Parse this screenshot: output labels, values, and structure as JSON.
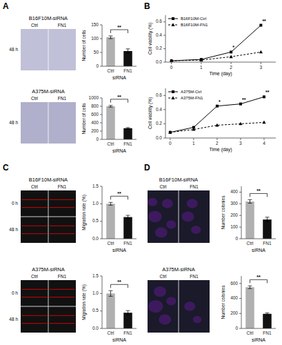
{
  "chart_data": [
    {
      "type": "image",
      "label": "A",
      "title": "B16F10M-siRNA",
      "columns": [
        "Ctrl",
        "FN1"
      ],
      "rows": [
        "48 h"
      ],
      "color": "#c0c0d8"
    },
    {
      "type": "bar",
      "categories": [
        "Ctrl",
        "FN1"
      ],
      "values": [
        105,
        55
      ],
      "yerr": [
        5,
        8
      ],
      "colors": [
        "#b0b0b0",
        "#111111"
      ],
      "xlabel": "siRNA",
      "ylabel": "Number of cells",
      "ylim": [
        0,
        150
      ],
      "yticks": [
        0,
        50,
        100,
        150
      ],
      "grid": false,
      "annotations": [
        "**"
      ]
    },
    {
      "type": "image",
      "title": "A375M-siRNA",
      "columns": [
        "Ctrl",
        "FN1"
      ],
      "rows": [
        "48 h"
      ],
      "color": "#b0b0cc"
    },
    {
      "type": "bar",
      "categories": [
        "Ctrl",
        "FN1"
      ],
      "values": [
        800,
        270
      ],
      "yerr": [
        20,
        15
      ],
      "colors": [
        "#b0b0b0",
        "#111111"
      ],
      "xlabel": "siRNA",
      "ylabel": "Number of cells",
      "ylim": [
        0,
        1000
      ],
      "yticks": [
        0,
        200,
        400,
        600,
        800,
        1000
      ],
      "grid": false,
      "annotations": [
        "**"
      ]
    },
    {
      "type": "line",
      "label": "B",
      "x": [
        0,
        1,
        2,
        3
      ],
      "series": [
        {
          "name": "B16F10M-Ctrl",
          "color": "#000000",
          "marker": "square",
          "line_style": "solid",
          "values": [
            0.02,
            0.04,
            0.15,
            0.55
          ]
        },
        {
          "name": "B16F10M-FN1",
          "color": "#000000",
          "marker": "triangle",
          "line_style": "dashed",
          "values": [
            0.02,
            0.03,
            0.08,
            0.15
          ]
        }
      ],
      "xlabel": "Time (day)",
      "ylabel": "Cell viability (%)",
      "xlim": [
        -0.2,
        3.5
      ],
      "xticks": [
        0,
        1,
        2,
        3
      ],
      "ylim": [
        0,
        0.7
      ],
      "yticks": [
        {
          "value": 0,
          "label": "0.0"
        },
        0.2,
        0.4,
        0.6
      ],
      "grid": false,
      "legend": "upper left",
      "annotations": [
        {
          "text": "**",
          "x": 3
        },
        {
          "text": "*",
          "x": 2
        }
      ]
    },
    {
      "type": "line",
      "x": [
        0,
        1,
        2,
        3,
        4
      ],
      "series": [
        {
          "name": "A375M-Ctrl",
          "color": "#000000",
          "marker": "square",
          "line_style": "solid",
          "values": [
            0.08,
            0.15,
            0.45,
            0.48,
            0.58
          ]
        },
        {
          "name": "A375M-FN1",
          "color": "#000000",
          "marker": "triangle",
          "line_style": "dashed",
          "values": [
            0.08,
            0.12,
            0.18,
            0.2,
            0.22
          ]
        }
      ],
      "xlabel": "Time (day)",
      "ylabel": "Cell viability (%)",
      "xlim": [
        -0.2,
        4.5
      ],
      "xticks": [
        0,
        1,
        2,
        3,
        4
      ],
      "ylim": [
        0,
        0.7
      ],
      "yticks": [
        {
          "value": 0,
          "label": "0.0"
        },
        0.2,
        0.4,
        0.6
      ],
      "grid": false,
      "legend": "upper left",
      "annotations": [
        {
          "text": "**",
          "x": 4
        },
        {
          "text": "**",
          "x": 3
        },
        {
          "text": "*",
          "x": 2
        }
      ]
    },
    {
      "type": "wound",
      "label": "C",
      "title": "B16F10M-siRNA",
      "columns": [
        "Ctrl",
        "FN1"
      ],
      "rows": [
        "0 h",
        "48 h"
      ],
      "color": "#111111"
    },
    {
      "type": "bar",
      "categories": [
        "Ctrl",
        "FN1"
      ],
      "values": [
        1.0,
        0.62
      ],
      "yerr": [
        0.04,
        0.05
      ],
      "colors": [
        "#b0b0b0",
        "#111111"
      ],
      "xlabel": "siRNA",
      "ylabel": "Migration rate (%)",
      "ylim": [
        0,
        1.5
      ],
      "yticks": [
        {
          "value": 0,
          "label": "0.0"
        },
        0.5,
        {
          "value": 1,
          "label": "1.0"
        },
        1.5
      ],
      "grid": false,
      "annotations": [
        "**"
      ]
    },
    {
      "type": "wound",
      "title": "A375M-siRNA",
      "columns": [
        "Ctrl",
        "FN1"
      ],
      "rows": [
        "0 h",
        "48 h"
      ],
      "color": "#111111"
    },
    {
      "type": "bar",
      "categories": [
        "Ctrl",
        "FN1"
      ],
      "values": [
        1.0,
        0.45
      ],
      "yerr": [
        0.08,
        0.06
      ],
      "colors": [
        "#b0b0b0",
        "#111111"
      ],
      "xlabel": "siRNA",
      "ylabel": "Migration rate (%)",
      "ylim": [
        0,
        1.5
      ],
      "yticks": [
        {
          "value": 0,
          "label": "0.0"
        },
        0.5,
        {
          "value": 1,
          "label": "1.0"
        },
        1.5
      ],
      "grid": false,
      "annotations": [
        "**"
      ]
    },
    {
      "type": "colony",
      "label": "D",
      "title": "B16F10M-siRNA",
      "columns": [
        "Ctrl",
        "FN1"
      ],
      "color": "#1a1a2a"
    },
    {
      "type": "bar",
      "categories": [
        "Ctrl",
        "FN1"
      ],
      "values": [
        320,
        165
      ],
      "yerr": [
        15,
        20
      ],
      "colors": [
        "#b0b0b0",
        "#111111"
      ],
      "xlabel": "siRNA",
      "ylabel": "Number colonies",
      "ylim": [
        0,
        450
      ],
      "yticks": [
        0,
        100,
        200,
        300,
        400
      ],
      "grid": false,
      "annotations": [
        "**"
      ]
    },
    {
      "type": "colony",
      "title": "A375M-siRNA",
      "columns": [
        "Ctrl",
        "FN1"
      ],
      "color": "#1a1a2a"
    },
    {
      "type": "bar",
      "categories": [
        "Ctrl",
        "FN1"
      ],
      "values": [
        550,
        195
      ],
      "yerr": [
        18,
        12
      ],
      "colors": [
        "#b0b0b0",
        "#111111"
      ],
      "xlabel": "siRNA",
      "ylabel": "Number colonies",
      "ylim": [
        0,
        700
      ],
      "yticks": [
        0,
        200,
        400,
        600
      ],
      "grid": false,
      "annotations": [
        "**"
      ]
    }
  ]
}
